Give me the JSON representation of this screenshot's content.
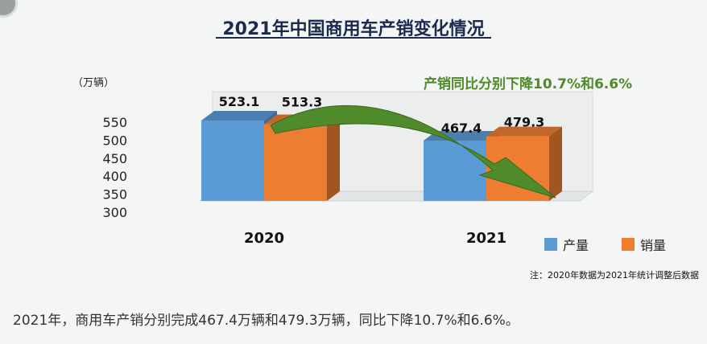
{
  "title": "2021年中国商用车产销变化情况",
  "unit_label": "（万辆）",
  "annotation": "产销同比分别下降10.7%和6.6%",
  "footnote": "注：2020年数据为2021年统计调整后数据",
  "summary": "2021年，商用车产销分别完成467.4万辆和479.3万辆，同比下降10.7%和6.6%。",
  "colors": {
    "production": "#5b9bd5",
    "sales": "#ed7d31",
    "arrow": "#4f8a2b",
    "title": "#1c2a4f"
  },
  "chart_data": {
    "type": "bar",
    "categories": [
      "2020",
      "2021"
    ],
    "series": [
      {
        "name": "产量",
        "values": [
          523.1,
          467.4
        ]
      },
      {
        "name": "销量",
        "values": [
          513.3,
          479.3
        ]
      }
    ],
    "ylim": [
      300,
      550
    ],
    "yticks": [
      300,
      350,
      400,
      450,
      500,
      550
    ],
    "ylabel": "（万辆）",
    "legend": "bottom-right",
    "style": "3d-bar"
  }
}
